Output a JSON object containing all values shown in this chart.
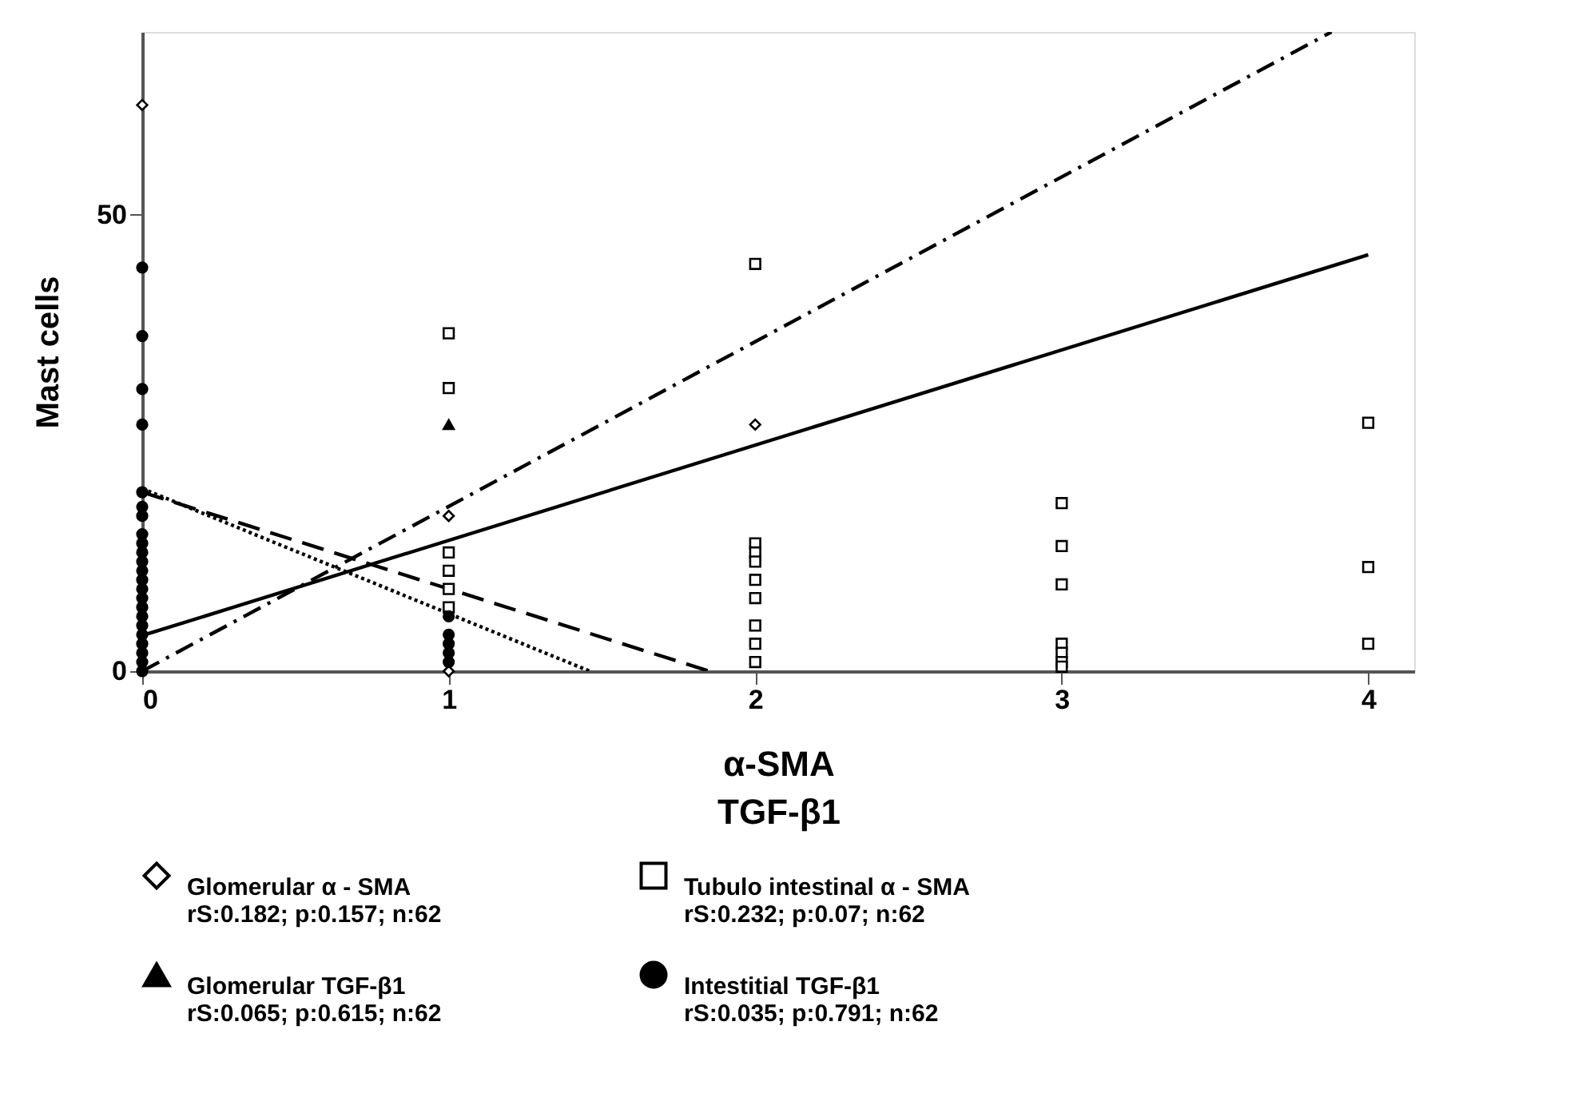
{
  "chart_data": {
    "type": "scatter",
    "xlabel": "α-SMA\nTGF-β1",
    "ylabel": "Mast cells",
    "xlim": [
      0,
      4.15
    ],
    "ylim": [
      0,
      70
    ],
    "xticks": [
      0,
      1,
      2,
      3,
      4
    ],
    "yticks": [
      0,
      50
    ],
    "grid": false,
    "legend": "bottom",
    "annotations": [
      "rS:0.182; p:0.157; n:62",
      "rS:0.065; p:0.615; n:62",
      "rS:0.232; p:0.07; n:62",
      "rS:0.035; p:0.791; n:62"
    ],
    "series": [
      {
        "name": "Glomerular α - SMA",
        "marker": "diamond",
        "color": "#000000",
        "x": [
          0,
          1,
          1,
          2
        ],
        "values": [
          62,
          17,
          0,
          27
        ]
      },
      {
        "type": "line",
        "line_style": "dashdot",
        "color": "#000000",
        "x": [
          0,
          3.88
        ],
        "values": [
          0,
          70
        ]
      },
      {
        "name": "Glomerular TGF-β1",
        "marker": "triangle",
        "color": "#000000",
        "x": [
          1
        ],
        "values": [
          27
        ]
      },
      {
        "type": "line",
        "line_style": "dashed",
        "color": "#000000",
        "x": [
          0,
          1.85
        ],
        "values": [
          19.6,
          0
        ]
      },
      {
        "name": "Tubulo intestinal α - SMA",
        "marker": "square",
        "color": "#000000",
        "x": [
          1,
          1,
          1,
          1,
          1,
          1,
          2,
          2,
          2,
          2,
          2,
          2,
          2,
          2,
          2,
          3,
          3,
          3,
          3,
          3,
          3,
          3,
          4,
          4,
          4
        ],
        "values": [
          37,
          31,
          13,
          11,
          9,
          7,
          44.6,
          14,
          13,
          12,
          10,
          8,
          5,
          3,
          1,
          18.4,
          13.7,
          9.5,
          3,
          2,
          1,
          0.5,
          27.2,
          11.4,
          3
        ]
      },
      {
        "type": "line",
        "line_style": "solid",
        "color": "#000000",
        "x": [
          0,
          4
        ],
        "values": [
          3.9,
          45.6
        ]
      },
      {
        "name": "Intestitial TGF-β1",
        "marker": "circle",
        "color": "#000000",
        "x": [
          0,
          0,
          0,
          0,
          0,
          0,
          0,
          0,
          0,
          0,
          0,
          0,
          0,
          0,
          0,
          0,
          0,
          0,
          0,
          0,
          0,
          0,
          0,
          1,
          1,
          1,
          1,
          1
        ],
        "values": [
          44.2,
          36.7,
          30.9,
          27,
          19.6,
          18,
          17,
          15,
          14,
          13,
          12,
          11,
          10,
          9,
          8,
          7,
          6,
          5,
          4,
          3,
          2,
          1,
          0,
          6,
          4,
          3,
          2,
          1
        ]
      },
      {
        "type": "line",
        "line_style": "dotted",
        "color": "#000000",
        "x": [
          0,
          1.46
        ],
        "values": [
          20,
          0
        ]
      }
    ]
  }
}
